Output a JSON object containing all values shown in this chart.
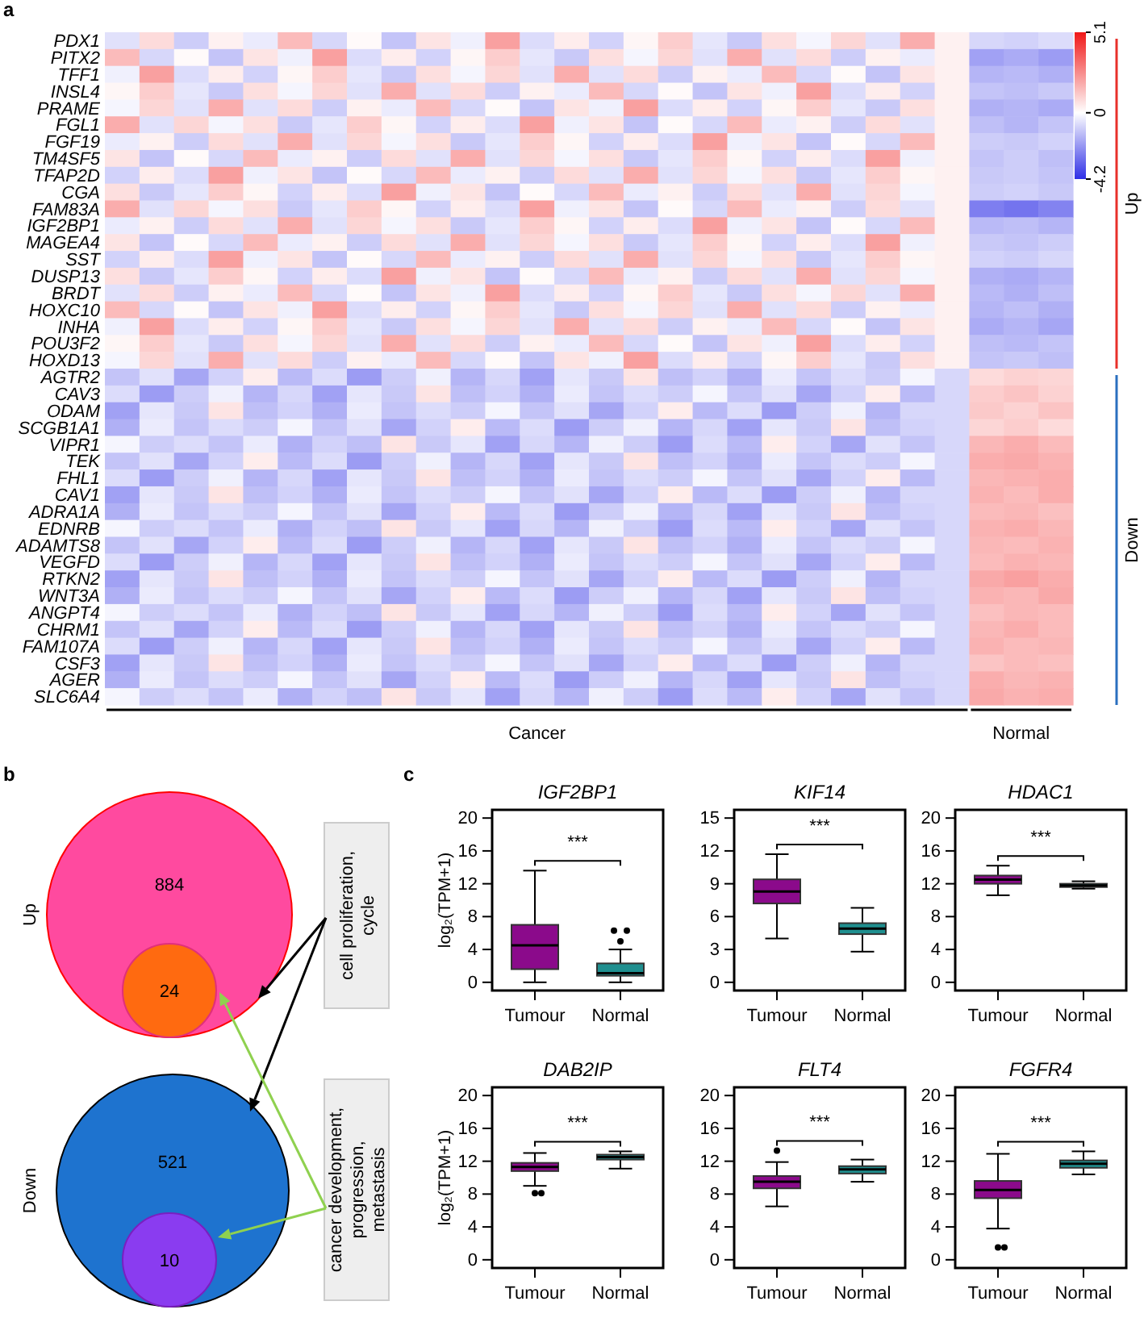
{
  "chart_data": [
    {
      "type": "heatmap",
      "annotations": [
        "a",
        "Up",
        "Down",
        "Cancer",
        "Normal"
      ],
      "categories": [
        null,
        null,
        null,
        null,
        null,
        null,
        null,
        null,
        null,
        null,
        null,
        null,
        null,
        null,
        null,
        null,
        null,
        null,
        null,
        null,
        null,
        null,
        null,
        null,
        null,
        null,
        null,
        null
      ],
      "y_categories": [
        "PDX1",
        "PITX2",
        "TFF1",
        "INSL4",
        "PRAME",
        "FGL1",
        "FGF19",
        "TM4SF5",
        "TFAP2D",
        "CGA",
        "FAM83A",
        "IGF2BP1",
        "MAGEA4",
        "SST",
        "DUSP13",
        "BRDT",
        "HOXC10",
        "INHA",
        "POU3F2",
        "HOXD13",
        "AGTR2",
        "CAV3",
        "ODAM",
        "SCGB1A1",
        "VIPR1",
        "TEK",
        "FHL1",
        "CAV1",
        "ADRA1A",
        "EDNRB",
        "ADAMTS8",
        "VEGFD",
        "RTKN2",
        "WNT3A",
        "ANGPT4",
        "CHRM1",
        "FAM107A",
        "CSF3",
        "AGER",
        "SLC6A4"
      ],
      "clim": [
        -4.2,
        5.1
      ],
      "cticks": [
        -4.2,
        0,
        5.1
      ],
      "colors": [
        "#2f2fe6",
        "#ffffff",
        "#f01818"
      ],
      "cells": [
        [
          -0.6,
          0.8,
          -1.0,
          0.3,
          -0.4,
          1.5,
          -0.8,
          0.1,
          -1.2,
          0.6,
          -0.3,
          2.1,
          -0.7,
          0.4,
          -0.9,
          0.2,
          1.1,
          -0.5,
          -1.1,
          0.7,
          -0.2,
          0.9,
          -0.6,
          1.8,
          0.3,
          -0.8,
          -0.9,
          -0.7
        ],
        [
          1.5,
          -0.8,
          0.1,
          -1.2,
          0.6,
          -0.3,
          2.1,
          -0.7,
          0.4,
          -0.9,
          0.2,
          1.1,
          -0.5,
          -1.1,
          0.7,
          -0.2,
          0.9,
          -0.6,
          1.8,
          -0.6,
          0.8,
          -1.0,
          0.3,
          -0.4,
          0.3,
          -1.9,
          -1.7,
          -2.0
        ],
        [
          -0.3,
          2.1,
          -0.7,
          0.4,
          -0.9,
          0.2,
          1.1,
          -0.5,
          -1.1,
          0.7,
          -0.2,
          0.9,
          -0.6,
          1.8,
          -0.6,
          0.8,
          -1.0,
          0.3,
          -0.4,
          1.5,
          -0.8,
          0.1,
          -1.2,
          0.6,
          0.3,
          -1.5,
          -1.4,
          -1.6
        ],
        [
          0.2,
          1.1,
          -0.5,
          -1.1,
          0.7,
          -0.2,
          0.9,
          -0.6,
          1.8,
          -0.6,
          0.8,
          -1.0,
          0.3,
          -0.4,
          1.5,
          -0.8,
          0.1,
          -1.2,
          0.6,
          -0.3,
          2.1,
          -0.7,
          0.4,
          -0.9,
          0.3,
          -1.2,
          -1.3,
          -1.1
        ],
        [
          -0.2,
          0.9,
          -0.6,
          1.8,
          -0.6,
          0.8,
          -1.0,
          0.3,
          -0.4,
          1.5,
          -0.8,
          0.1,
          -1.2,
          0.6,
          -0.3,
          2.1,
          -0.7,
          0.4,
          -0.9,
          0.2,
          1.1,
          -0.5,
          -1.1,
          0.7,
          0.3,
          -1.6,
          -1.5,
          -1.7
        ],
        [
          1.8,
          -0.6,
          0.9,
          -0.2,
          0.7,
          -1.1,
          -0.5,
          1.1,
          0.2,
          -0.9,
          0.4,
          -0.7,
          2.1,
          -0.3,
          0.6,
          -1.2,
          0.1,
          -0.8,
          1.5,
          -0.4,
          0.3,
          -1.0,
          0.8,
          -0.6,
          0.3,
          -1.3,
          -1.5,
          -1.2
        ],
        [
          -0.4,
          0.3,
          -1.0,
          0.8,
          -0.6,
          1.8,
          -0.6,
          0.9,
          -0.2,
          0.7,
          -1.1,
          -0.5,
          1.1,
          0.2,
          -0.9,
          0.4,
          -0.7,
          2.1,
          -0.3,
          0.6,
          -1.2,
          0.1,
          -0.8,
          1.5,
          0.3,
          -1.0,
          -1.1,
          -0.9
        ],
        [
          0.6,
          -1.2,
          0.1,
          -0.8,
          1.5,
          -0.4,
          0.3,
          -1.0,
          0.8,
          -0.6,
          1.8,
          -0.6,
          0.9,
          -0.2,
          0.7,
          -1.1,
          -0.5,
          1.1,
          0.2,
          -0.9,
          0.4,
          -0.7,
          2.1,
          -0.3,
          0.3,
          -1.2,
          -1.0,
          -1.3
        ],
        [
          -0.9,
          0.4,
          -0.7,
          2.1,
          -0.3,
          0.6,
          -1.2,
          0.1,
          -0.8,
          1.5,
          -0.4,
          0.3,
          -1.0,
          0.8,
          -0.6,
          1.8,
          -0.6,
          0.9,
          -0.2,
          0.7,
          -1.1,
          -0.5,
          1.1,
          0.2,
          0.3,
          -1.1,
          -1.0,
          -1.2
        ],
        [
          0.7,
          -1.1,
          -0.5,
          1.1,
          0.2,
          -0.9,
          0.4,
          -0.7,
          2.1,
          -0.3,
          0.6,
          -1.2,
          0.1,
          -0.8,
          1.5,
          -0.4,
          0.3,
          -1.0,
          0.8,
          -0.6,
          1.8,
          -0.6,
          0.9,
          -0.2,
          0.3,
          -1.0,
          -0.9,
          -1.1
        ],
        [
          1.8,
          -0.6,
          0.9,
          -0.2,
          0.7,
          -1.1,
          -0.5,
          1.1,
          0.2,
          -0.9,
          0.4,
          -0.7,
          2.1,
          -0.3,
          0.6,
          -1.2,
          0.1,
          -0.8,
          1.5,
          -0.4,
          0.3,
          -1.0,
          0.8,
          -0.6,
          0.3,
          -2.6,
          -2.8,
          -2.5
        ],
        [
          -0.4,
          0.3,
          -1.0,
          0.8,
          -0.6,
          1.8,
          -0.6,
          0.9,
          -0.2,
          0.7,
          -1.1,
          -0.5,
          1.1,
          0.2,
          -0.9,
          0.4,
          -0.7,
          2.1,
          -0.3,
          0.6,
          -1.2,
          0.1,
          -0.8,
          1.5,
          0.3,
          -1.4,
          -1.3,
          -1.5
        ],
        [
          0.6,
          -1.2,
          0.1,
          -0.8,
          1.5,
          -0.4,
          0.3,
          -1.0,
          0.8,
          -0.6,
          1.8,
          -0.6,
          0.9,
          -0.2,
          0.7,
          -1.1,
          -0.5,
          1.1,
          0.2,
          -0.9,
          0.4,
          -0.7,
          2.1,
          -0.3,
          0.3,
          -1.1,
          -1.2,
          -1.0
        ],
        [
          -0.9,
          0.4,
          -0.7,
          2.1,
          -0.3,
          0.6,
          -1.2,
          0.1,
          -0.8,
          1.5,
          -0.4,
          0.3,
          -1.0,
          0.8,
          -0.6,
          1.8,
          -0.6,
          0.9,
          -0.2,
          0.7,
          -1.1,
          -0.5,
          1.1,
          0.2,
          0.3,
          -0.9,
          -1.0,
          -0.8
        ],
        [
          0.7,
          -1.1,
          -0.5,
          1.1,
          0.2,
          -0.9,
          0.4,
          -0.7,
          2.1,
          -0.3,
          0.6,
          -1.2,
          0.1,
          -0.8,
          1.5,
          -0.4,
          0.3,
          -1.0,
          0.8,
          -0.6,
          1.8,
          -0.6,
          0.9,
          -0.2,
          0.3,
          -1.6,
          -1.7,
          -1.5
        ],
        [
          -0.6,
          0.8,
          -1.0,
          0.3,
          -0.4,
          1.5,
          -0.8,
          0.1,
          -1.2,
          0.6,
          -0.3,
          2.1,
          -0.7,
          0.4,
          -0.9,
          0.2,
          1.1,
          -0.5,
          -1.1,
          0.7,
          -0.2,
          0.9,
          -0.6,
          1.8,
          0.3,
          -1.4,
          -1.6,
          -1.3
        ],
        [
          1.5,
          -0.8,
          0.1,
          -1.2,
          0.6,
          -0.3,
          2.1,
          -0.7,
          0.4,
          -0.9,
          0.2,
          1.1,
          -0.5,
          -1.1,
          0.7,
          -0.2,
          0.9,
          -0.6,
          1.8,
          -0.6,
          0.8,
          -1.0,
          0.3,
          -0.4,
          0.3,
          -1.5,
          -1.3,
          -1.6
        ],
        [
          -0.3,
          2.1,
          -0.7,
          0.4,
          -0.9,
          0.2,
          1.1,
          -0.5,
          -1.1,
          0.7,
          -0.2,
          0.9,
          -0.6,
          1.8,
          -0.6,
          0.8,
          -1.0,
          0.3,
          -0.4,
          1.5,
          -0.8,
          0.1,
          -1.2,
          0.6,
          0.3,
          -1.7,
          -1.5,
          -1.8
        ],
        [
          0.2,
          1.1,
          -0.5,
          -1.1,
          0.7,
          -0.2,
          0.9,
          -0.6,
          1.8,
          -0.6,
          0.8,
          -1.0,
          0.3,
          -0.4,
          1.5,
          -0.8,
          0.1,
          -1.2,
          0.6,
          -0.3,
          2.1,
          -0.7,
          0.4,
          -0.9,
          0.3,
          -1.3,
          -1.4,
          -1.2
        ],
        [
          -0.2,
          0.9,
          -0.6,
          1.8,
          -0.6,
          0.8,
          -1.0,
          0.3,
          -0.4,
          1.5,
          -0.8,
          0.1,
          -1.2,
          0.6,
          -0.3,
          2.1,
          -0.7,
          0.4,
          -0.9,
          0.2,
          1.1,
          -0.5,
          -1.1,
          0.7,
          0.3,
          -1.2,
          -1.1,
          -1.3
        ],
        [
          -1.2,
          -0.6,
          -1.8,
          -0.9,
          0.4,
          -1.4,
          -0.7,
          -2.0,
          -1.0,
          -0.3,
          -1.5,
          -0.8,
          -1.9,
          -0.5,
          -1.1,
          0.6,
          -1.3,
          -0.9,
          -1.6,
          -0.4,
          -1.2,
          -0.7,
          -1.0,
          -0.2,
          -0.8,
          0.8,
          1.0,
          0.9
        ],
        [
          -0.7,
          -2.0,
          -1.0,
          -0.3,
          -1.5,
          -0.8,
          -1.9,
          -0.5,
          -1.1,
          0.6,
          -1.3,
          -0.9,
          -1.6,
          -0.4,
          -1.2,
          -0.7,
          -1.0,
          -0.2,
          -1.2,
          -0.6,
          -1.8,
          -0.9,
          0.4,
          -1.4,
          -0.8,
          1.1,
          1.3,
          1.0
        ],
        [
          -1.9,
          -0.5,
          -1.1,
          0.6,
          -1.3,
          -0.9,
          -1.6,
          -0.4,
          -1.2,
          -0.7,
          -1.0,
          -0.2,
          -1.2,
          -0.6,
          -1.8,
          -0.9,
          0.4,
          -1.4,
          -0.7,
          -2.0,
          -1.0,
          -0.3,
          -1.5,
          -0.8,
          -0.8,
          1.2,
          1.0,
          1.3
        ],
        [
          -1.6,
          -0.4,
          -1.2,
          -0.7,
          -1.0,
          -0.2,
          -1.2,
          -0.6,
          -1.8,
          -0.9,
          0.4,
          -1.4,
          -0.7,
          -2.0,
          -1.0,
          -0.3,
          -1.5,
          -0.8,
          -1.9,
          -0.5,
          -1.1,
          0.6,
          -1.3,
          -0.9,
          -0.8,
          0.9,
          1.1,
          0.8
        ],
        [
          -0.2,
          -1.0,
          -0.7,
          -1.2,
          -0.4,
          -1.6,
          -0.9,
          -1.3,
          0.6,
          -1.1,
          -0.5,
          -1.9,
          -0.8,
          -1.5,
          -0.3,
          -1.0,
          -2.0,
          -0.7,
          -1.4,
          0.4,
          -0.9,
          -1.8,
          -0.6,
          -1.2,
          -0.8,
          1.6,
          1.8,
          1.5
        ],
        [
          -1.2,
          -0.6,
          -1.8,
          -0.9,
          0.4,
          -1.4,
          -0.7,
          -2.0,
          -1.0,
          -0.3,
          -1.5,
          -0.8,
          -1.9,
          -0.5,
          -1.1,
          0.6,
          -1.3,
          -0.9,
          -1.6,
          -0.4,
          -1.2,
          -0.7,
          -1.0,
          -0.2,
          -0.8,
          1.8,
          1.9,
          1.7
        ],
        [
          -0.7,
          -2.0,
          -1.0,
          -0.3,
          -1.5,
          -0.8,
          -1.9,
          -0.5,
          -1.1,
          0.6,
          -1.3,
          -0.9,
          -1.6,
          -0.4,
          -1.2,
          -0.7,
          -1.0,
          -0.2,
          -1.2,
          -0.6,
          -1.8,
          -0.9,
          0.4,
          -1.4,
          -0.8,
          1.6,
          1.7,
          1.8
        ],
        [
          -1.9,
          -0.5,
          -1.1,
          0.6,
          -1.3,
          -0.9,
          -1.6,
          -0.4,
          -1.2,
          -0.7,
          -1.0,
          -0.2,
          -1.2,
          -0.6,
          -1.8,
          -0.9,
          0.4,
          -1.4,
          -0.7,
          -2.0,
          -1.0,
          -0.3,
          -1.5,
          -0.8,
          -0.8,
          1.7,
          1.5,
          1.8
        ],
        [
          -1.6,
          -0.4,
          -1.2,
          -0.7,
          -1.0,
          -0.2,
          -1.2,
          -0.6,
          -1.8,
          -0.9,
          0.4,
          -1.4,
          -0.7,
          -2.0,
          -1.0,
          -0.3,
          -1.5,
          -0.8,
          -1.9,
          -0.5,
          -1.1,
          0.6,
          -1.3,
          -0.9,
          -0.8,
          1.5,
          1.6,
          1.4
        ],
        [
          -0.2,
          -1.0,
          -0.7,
          -1.2,
          -0.4,
          -1.6,
          -0.9,
          -1.3,
          0.6,
          -1.1,
          -0.5,
          -1.9,
          -0.8,
          -1.5,
          -0.3,
          -1.0,
          -2.0,
          -0.7,
          -1.4,
          0.4,
          -0.9,
          -1.8,
          -0.6,
          -1.2,
          -0.8,
          1.7,
          1.8,
          1.6
        ],
        [
          -1.2,
          -0.6,
          -1.8,
          -0.9,
          0.4,
          -1.4,
          -0.7,
          -2.0,
          -1.0,
          -0.3,
          -1.5,
          -0.8,
          -1.9,
          -0.5,
          -1.1,
          0.6,
          -1.3,
          -0.9,
          -1.6,
          -0.4,
          -1.2,
          -0.7,
          -1.0,
          -0.2,
          -0.8,
          1.6,
          1.5,
          1.7
        ],
        [
          -0.7,
          -2.0,
          -1.0,
          -0.3,
          -1.5,
          -0.8,
          -1.9,
          -0.5,
          -1.1,
          0.6,
          -1.3,
          -0.9,
          -1.6,
          -0.4,
          -1.2,
          -0.7,
          -1.0,
          -0.2,
          -1.2,
          -0.6,
          -1.8,
          -0.9,
          0.4,
          -1.4,
          -0.8,
          1.5,
          1.7,
          1.6
        ],
        [
          -1.9,
          -0.5,
          -1.1,
          0.6,
          -1.3,
          -0.9,
          -1.6,
          -0.4,
          -1.2,
          -0.7,
          -1.0,
          -0.2,
          -1.2,
          -0.6,
          -1.8,
          -0.9,
          0.4,
          -1.4,
          -0.7,
          -2.0,
          -1.0,
          -0.3,
          -1.5,
          -0.8,
          -0.8,
          1.9,
          2.1,
          1.8
        ],
        [
          -1.6,
          -0.4,
          -1.2,
          -0.7,
          -1.0,
          -0.2,
          -1.2,
          -0.6,
          -1.8,
          -0.9,
          0.4,
          -1.4,
          -0.7,
          -2.0,
          -1.0,
          -0.3,
          -1.5,
          -0.8,
          -1.9,
          -0.5,
          -1.1,
          0.6,
          -1.3,
          -0.9,
          -0.8,
          1.7,
          1.6,
          1.9
        ],
        [
          -0.2,
          -1.0,
          -0.7,
          -1.2,
          -0.4,
          -1.6,
          -0.9,
          -1.3,
          0.6,
          -1.1,
          -0.5,
          -1.9,
          -0.8,
          -1.5,
          -0.3,
          -1.0,
          -2.0,
          -0.7,
          -1.4,
          0.4,
          -0.9,
          -1.8,
          -0.6,
          -1.2,
          -0.8,
          1.4,
          1.6,
          1.5
        ],
        [
          -1.2,
          -0.6,
          -1.8,
          -0.9,
          0.4,
          -1.4,
          -0.7,
          -2.0,
          -1.0,
          -0.3,
          -1.5,
          -0.8,
          -1.9,
          -0.5,
          -1.1,
          0.6,
          -1.3,
          -0.9,
          -1.6,
          -0.4,
          -1.2,
          -0.7,
          -1.0,
          -0.2,
          -0.8,
          1.6,
          1.8,
          1.5
        ],
        [
          -0.7,
          -2.0,
          -1.0,
          -0.3,
          -1.5,
          -0.8,
          -1.9,
          -0.5,
          -1.1,
          0.6,
          -1.3,
          -0.9,
          -1.6,
          -0.4,
          -1.2,
          -0.7,
          -1.0,
          -0.2,
          -1.2,
          -0.6,
          -1.8,
          -0.9,
          0.4,
          -1.4,
          -0.8,
          1.7,
          1.5,
          1.6
        ],
        [
          -1.9,
          -0.5,
          -1.1,
          0.6,
          -1.3,
          -0.9,
          -1.6,
          -0.4,
          -1.2,
          -0.7,
          -1.0,
          -0.2,
          -1.2,
          -0.6,
          -1.8,
          -0.9,
          0.4,
          -1.4,
          -0.7,
          -2.0,
          -1.0,
          -0.3,
          -1.5,
          -0.8,
          -0.8,
          1.3,
          1.5,
          1.4
        ],
        [
          -1.6,
          -0.4,
          -1.2,
          -0.7,
          -1.0,
          -0.2,
          -1.2,
          -0.6,
          -1.8,
          -0.9,
          0.4,
          -1.4,
          -0.7,
          -2.0,
          -1.0,
          -0.3,
          -1.5,
          -0.8,
          -1.9,
          -0.5,
          -1.1,
          0.6,
          -1.3,
          -0.9,
          -0.8,
          1.8,
          1.6,
          1.7
        ],
        [
          -0.2,
          -1.0,
          -0.7,
          -1.2,
          -0.4,
          -1.6,
          -0.9,
          -1.3,
          0.6,
          -1.1,
          -0.5,
          -1.9,
          -0.8,
          -1.5,
          -0.3,
          -1.0,
          -2.0,
          -0.7,
          -1.4,
          0.4,
          -0.9,
          -1.8,
          -0.6,
          -1.2,
          -0.8,
          1.9,
          1.7,
          1.8
        ]
      ]
    },
    {
      "type": "other",
      "data_labels": true,
      "annotations": [
        "b",
        "cell proliferation, cycle",
        "cancer development, progression, metastasis"
      ],
      "categories": [
        "Up",
        "Down"
      ],
      "series": [
        {
          "values": [
            884,
            521
          ],
          "colors": [
            "#ff4a9f",
            "#1e73cf"
          ]
        },
        {
          "values": [
            24,
            10
          ],
          "colors": [
            "#ff6a10",
            "#8a3cf0"
          ]
        }
      ]
    },
    {
      "type": "box",
      "title": "IGF2BP1",
      "ylabel": "log₂(TPM+1)",
      "annotations": [
        "c",
        "***"
      ],
      "categories": [
        "Tumour",
        "Normal"
      ],
      "colors": [
        "#8b0a8b",
        "#1f8f8f"
      ],
      "ylim": [
        -1,
        21
      ],
      "yticks": [
        0,
        4,
        8,
        12,
        16,
        20
      ],
      "boxes": [
        {
          "low": 0,
          "q1": 1.6,
          "median": 4.5,
          "q3": 7.0,
          "high": 13.6
        },
        {
          "low": 0,
          "q1": 0.8,
          "median": 1.1,
          "q3": 2.3,
          "high": 4.0,
          "outliers": [
            5.0,
            6.3,
            6.3
          ]
        }
      ]
    },
    {
      "type": "box",
      "title": "KIF14",
      "annotations": [
        "***"
      ],
      "categories": [
        "Tumour",
        "Normal"
      ],
      "colors": [
        "#8b0a8b",
        "#1f8f8f"
      ],
      "ylim": [
        -0.75,
        15.75
      ],
      "yticks": [
        0,
        3,
        6,
        9,
        12,
        15
      ],
      "boxes": [
        {
          "low": 4.0,
          "q1": 7.2,
          "median": 8.3,
          "q3": 9.4,
          "high": 11.7
        },
        {
          "low": 2.8,
          "q1": 4.4,
          "median": 4.9,
          "q3": 5.4,
          "high": 6.8
        }
      ]
    },
    {
      "type": "box",
      "title": "HDAC1",
      "annotations": [
        "***"
      ],
      "categories": [
        "Tumour",
        "Normal"
      ],
      "colors": [
        "#8b0a8b",
        "#1f8f8f"
      ],
      "ylim": [
        -1,
        21
      ],
      "yticks": [
        0,
        4,
        8,
        12,
        16,
        20
      ],
      "boxes": [
        {
          "low": 10.6,
          "q1": 12.0,
          "median": 12.5,
          "q3": 13.0,
          "high": 14.2
        },
        {
          "low": 11.4,
          "q1": 11.6,
          "median": 11.8,
          "q3": 12.0,
          "high": 12.3
        }
      ]
    },
    {
      "type": "box",
      "title": "DAB2IP",
      "ylabel": "log₂(TPM+1)",
      "annotations": [
        "***"
      ],
      "categories": [
        "Tumour",
        "Normal"
      ],
      "colors": [
        "#8b0a8b",
        "#1f8f8f"
      ],
      "ylim": [
        -1,
        21
      ],
      "yticks": [
        0,
        4,
        8,
        12,
        16,
        20
      ],
      "boxes": [
        {
          "low": 9.0,
          "q1": 10.8,
          "median": 11.3,
          "q3": 11.8,
          "high": 13.0,
          "outliers": [
            8.1,
            8.1
          ]
        },
        {
          "low": 11.1,
          "q1": 12.2,
          "median": 12.5,
          "q3": 12.8,
          "high": 13.2
        }
      ]
    },
    {
      "type": "box",
      "title": "FLT4",
      "annotations": [
        "***"
      ],
      "categories": [
        "Tumour",
        "Normal"
      ],
      "colors": [
        "#8b0a8b",
        "#1f8f8f"
      ],
      "ylim": [
        -1,
        21
      ],
      "yticks": [
        0,
        4,
        8,
        12,
        16,
        20
      ],
      "boxes": [
        {
          "low": 6.5,
          "q1": 8.7,
          "median": 9.5,
          "q3": 10.2,
          "high": 11.9,
          "outliers": [
            13.3
          ]
        },
        {
          "low": 9.5,
          "q1": 10.5,
          "median": 11.0,
          "q3": 11.4,
          "high": 12.2
        }
      ]
    },
    {
      "type": "box",
      "title": "FGFR4",
      "annotations": [
        "***"
      ],
      "categories": [
        "Tumour",
        "Normal"
      ],
      "colors": [
        "#8b0a8b",
        "#1f8f8f"
      ],
      "ylim": [
        -1,
        21
      ],
      "yticks": [
        0,
        4,
        8,
        12,
        16,
        20
      ],
      "boxes": [
        {
          "low": 3.8,
          "q1": 7.5,
          "median": 8.5,
          "q3": 9.6,
          "high": 12.9,
          "outliers": [
            1.5,
            1.5
          ]
        },
        {
          "low": 10.4,
          "q1": 11.2,
          "median": 11.7,
          "q3": 12.1,
          "high": 13.2
        }
      ]
    }
  ]
}
